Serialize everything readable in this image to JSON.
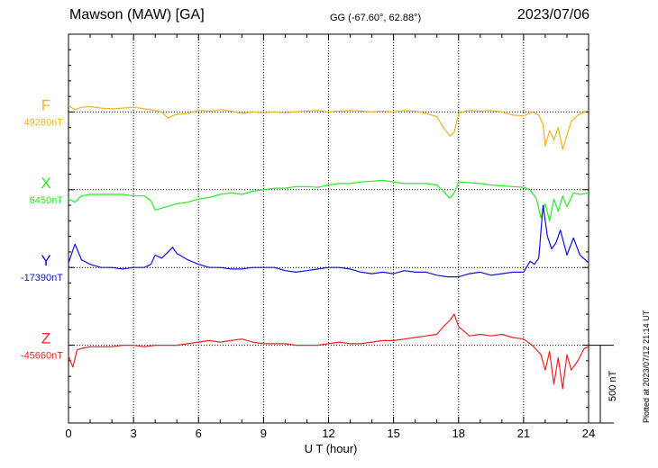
{
  "header": {
    "station": "Mawson (MAW)  [GA]",
    "coords": "GG (-67.60°,  62.88°)",
    "date": "2023/07/06"
  },
  "footer": {
    "plotted": "Plotted at 2023/07/12 21:14 UT"
  },
  "chart_data": {
    "type": "line",
    "title": "Mawson (MAW)  [GA]",
    "xlabel": "U T (hour)",
    "ylabel": "",
    "xlim": [
      0,
      24
    ],
    "x_ticks": [
      "0",
      "3",
      "6",
      "9",
      "12",
      "15",
      "18",
      "21",
      "24"
    ],
    "grid": true,
    "scale_bar_nT": 500,
    "scale_label": "500 nT",
    "baseline_offset_unit_nT": 500,
    "series": [
      {
        "name": "F",
        "baseline_label": "49280nT",
        "baseline_slot": 1,
        "color": "#f5b120",
        "x": [
          0,
          0.3,
          0.6,
          1,
          1.5,
          2,
          2.5,
          3,
          3.5,
          4,
          4.3,
          4.6,
          4.8,
          5,
          5.5,
          6,
          6.5,
          7,
          7.5,
          8,
          8.5,
          9,
          9.5,
          10,
          10.5,
          11,
          11.5,
          12,
          12.5,
          13,
          13.5,
          14,
          14.5,
          15,
          15.5,
          16,
          16.5,
          17,
          17.3,
          17.6,
          17.8,
          18,
          18.3,
          18.6,
          19,
          19.5,
          20,
          20.5,
          21,
          21.4,
          21.7,
          21.9,
          22,
          22.2,
          22.4,
          22.6,
          22.8,
          23,
          23.2,
          23.5,
          23.8,
          24
        ],
        "values": [
          40,
          15,
          30,
          35,
          25,
          20,
          25,
          30,
          20,
          10,
          0,
          -40,
          -25,
          -15,
          -10,
          10,
          5,
          15,
          5,
          -10,
          0,
          -5,
          0,
          -5,
          0,
          5,
          10,
          0,
          5,
          10,
          5,
          0,
          5,
          0,
          10,
          5,
          -10,
          -30,
          -100,
          -155,
          -130,
          -10,
          5,
          10,
          5,
          10,
          0,
          -20,
          -25,
          0,
          -20,
          -80,
          -220,
          -120,
          -180,
          -100,
          -240,
          -150,
          -60,
          -20,
          0,
          10
        ]
      },
      {
        "name": "X",
        "baseline_label": "6450nT",
        "baseline_slot": 2,
        "color": "#22ee22",
        "x": [
          0,
          0.3,
          0.6,
          1,
          1.5,
          2,
          2.5,
          3,
          3.5,
          3.8,
          4,
          4.5,
          5,
          5.5,
          6,
          6.5,
          7,
          7.5,
          8,
          8.5,
          9,
          9.5,
          10,
          10.5,
          11,
          11.5,
          12,
          12.5,
          13,
          13.5,
          14,
          14.5,
          15,
          15.5,
          16,
          16.5,
          17,
          17.3,
          17.6,
          17.8,
          18,
          18.5,
          19,
          19.5,
          20,
          20.5,
          21,
          21.3,
          21.6,
          21.8,
          22,
          22.2,
          22.4,
          22.6,
          22.8,
          23,
          23.3,
          23.6,
          24
        ],
        "values": [
          -60,
          -80,
          -40,
          -30,
          -30,
          -30,
          -30,
          -40,
          -40,
          -70,
          -130,
          -110,
          -90,
          -80,
          -60,
          -50,
          -30,
          -20,
          -30,
          -10,
          0,
          10,
          10,
          20,
          20,
          15,
          30,
          40,
          40,
          50,
          55,
          60,
          50,
          40,
          40,
          40,
          30,
          -10,
          -55,
          -20,
          50,
          45,
          40,
          30,
          25,
          20,
          15,
          0,
          -60,
          -180,
          -90,
          -200,
          -60,
          -140,
          -40,
          -110,
          -20,
          -30,
          -20
        ]
      },
      {
        "name": "Y",
        "baseline_label": "-17390nT",
        "baseline_slot": 3,
        "color": "#1010dd",
        "x": [
          0,
          0.3,
          0.6,
          1,
          1.5,
          2,
          2.5,
          3,
          3.5,
          3.8,
          4,
          4.3,
          4.6,
          4.8,
          5,
          5.5,
          6,
          6.5,
          7,
          7.5,
          8,
          8.5,
          9,
          9.5,
          10,
          10.5,
          11,
          11.5,
          12,
          12.5,
          13,
          13.5,
          14,
          14.5,
          15,
          15.5,
          16,
          16.5,
          17,
          17.5,
          18,
          18.5,
          19,
          19.5,
          20,
          20.5,
          21,
          21.3,
          21.5,
          21.7,
          21.9,
          22,
          22.1,
          22.3,
          22.5,
          22.7,
          23,
          23.3,
          23.6,
          24
        ],
        "values": [
          30,
          150,
          50,
          20,
          0,
          0,
          -10,
          0,
          0,
          20,
          80,
          60,
          100,
          130,
          90,
          50,
          20,
          0,
          0,
          -10,
          -10,
          0,
          0,
          0,
          -20,
          -30,
          -20,
          -10,
          0,
          0,
          -10,
          -30,
          -40,
          -30,
          -40,
          -20,
          -30,
          -30,
          -50,
          -60,
          -60,
          -40,
          -30,
          -50,
          -40,
          -30,
          -30,
          40,
          20,
          60,
          400,
          300,
          200,
          120,
          160,
          240,
          80,
          190,
          80,
          30
        ]
      },
      {
        "name": "Z",
        "baseline_label": "-45660nT",
        "baseline_slot": 4,
        "color": "#ee2222",
        "x": [
          0,
          0.2,
          0.4,
          0.6,
          1,
          1.5,
          2,
          2.5,
          3,
          3.5,
          4,
          4.5,
          5,
          5.5,
          6,
          6.5,
          7,
          7.5,
          8,
          8.5,
          9,
          9.5,
          10,
          10.5,
          11,
          11.5,
          12,
          12.5,
          13,
          13.5,
          14,
          14.5,
          15,
          15.5,
          16,
          16.5,
          17,
          17.3,
          17.6,
          17.8,
          18,
          18.5,
          19,
          19.5,
          20,
          20.5,
          21,
          21.4,
          21.8,
          22,
          22.2,
          22.4,
          22.6,
          22.8,
          23,
          23.2,
          23.5,
          23.8,
          24
        ],
        "values": [
          -70,
          -140,
          -30,
          -20,
          -10,
          -10,
          -10,
          0,
          0,
          -10,
          0,
          0,
          0,
          10,
          20,
          30,
          20,
          30,
          40,
          20,
          10,
          10,
          10,
          0,
          0,
          0,
          10,
          20,
          10,
          10,
          20,
          30,
          30,
          40,
          50,
          60,
          70,
          120,
          160,
          200,
          120,
          60,
          70,
          60,
          70,
          50,
          40,
          0,
          -60,
          -160,
          -40,
          -250,
          -80,
          -280,
          -60,
          -160,
          -100,
          -20,
          -10
        ]
      }
    ]
  }
}
